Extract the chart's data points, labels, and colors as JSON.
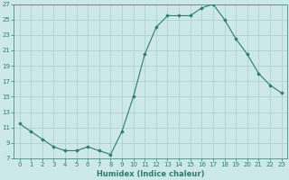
{
  "x": [
    0,
    1,
    2,
    3,
    4,
    5,
    6,
    7,
    8,
    9,
    10,
    11,
    12,
    13,
    14,
    15,
    16,
    17,
    18,
    19,
    20,
    21,
    22,
    23
  ],
  "y": [
    11.5,
    10.5,
    9.5,
    8.5,
    8.0,
    8.0,
    8.5,
    8.0,
    7.5,
    10.5,
    15.0,
    20.5,
    24.0,
    25.5,
    25.5,
    25.5,
    26.5,
    27.0,
    25.0,
    22.5,
    20.5,
    18.0,
    16.5,
    15.5
  ],
  "xlabel": "Humidex (Indice chaleur)",
  "ylim": [
    7,
    27
  ],
  "xlim_min": -0.5,
  "xlim_max": 23.5,
  "yticks": [
    7,
    9,
    11,
    13,
    15,
    17,
    19,
    21,
    23,
    25,
    27
  ],
  "xticks": [
    0,
    1,
    2,
    3,
    4,
    5,
    6,
    7,
    8,
    9,
    10,
    11,
    12,
    13,
    14,
    15,
    16,
    17,
    18,
    19,
    20,
    21,
    22,
    23
  ],
  "xtick_labels": [
    "0",
    "1",
    "2",
    "3",
    "4",
    "5",
    "6",
    "7",
    "8",
    "9",
    "10",
    "11",
    "12",
    "13",
    "14",
    "15",
    "16",
    "17",
    "18",
    "19",
    "20",
    "21",
    "22",
    "23"
  ],
  "line_color": "#2d7d6e",
  "marker": "D",
  "marker_size": 1.8,
  "bg_color": "#cce8e8",
  "grid_color": "#aacece",
  "axis_bg": "#cce8e8",
  "xlabel_fontsize": 6.0,
  "tick_fontsize": 5.0,
  "linewidth": 0.8
}
